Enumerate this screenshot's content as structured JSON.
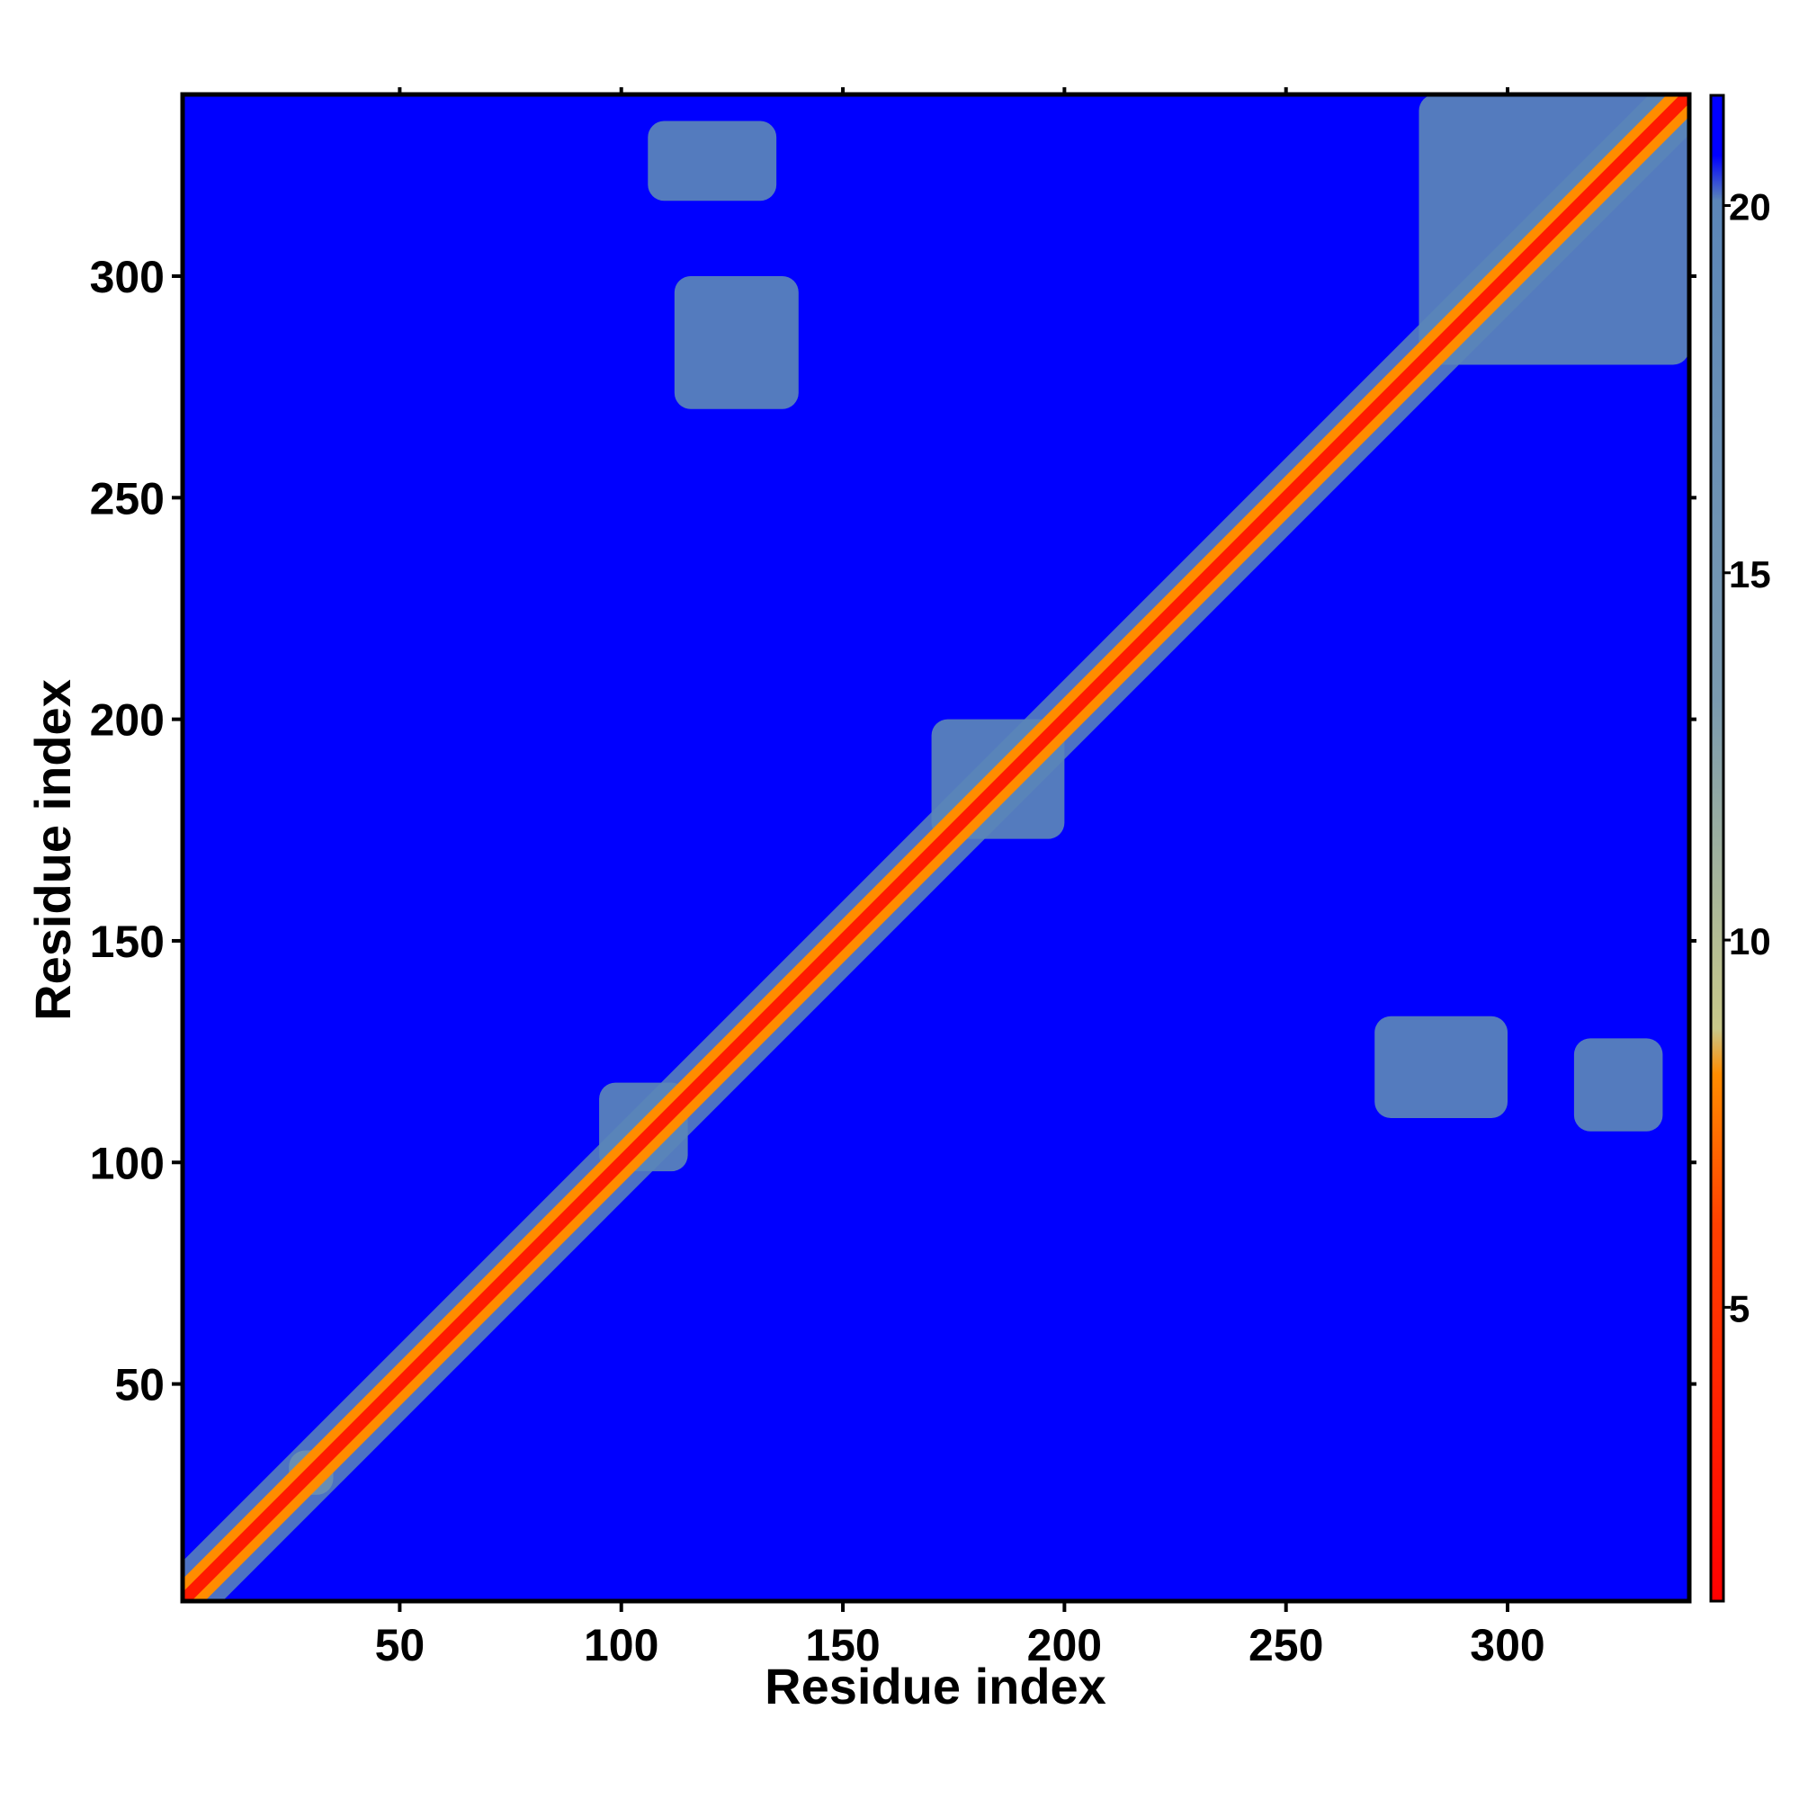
{
  "chart_data": {
    "type": "heatmap",
    "title": "",
    "xlabel": "Residue index",
    "ylabel": "Residue index",
    "xlim": [
      1,
      341
    ],
    "ylim": [
      1,
      341
    ],
    "x_ticks": [
      50,
      100,
      150,
      200,
      250,
      300
    ],
    "y_ticks": [
      50,
      100,
      150,
      200,
      250,
      300
    ],
    "colorbar": {
      "ticks": [
        5,
        10,
        15,
        20
      ],
      "range": [
        1,
        21.5
      ],
      "colors": [
        "#ff0000",
        "#ff8c00",
        "#c8c88a",
        "#5b86b8",
        "#0000ff"
      ]
    },
    "background_value": 21,
    "diagonal_band": {
      "core_value": 2,
      "inner_width": 2,
      "mid_value": 8,
      "mid_width": 5,
      "outer_value": 12,
      "outer_width": 9
    },
    "contact_regions": [
      {
        "x": [
          112,
          140
        ],
        "y": [
          270,
          300
        ],
        "value": 18
      },
      {
        "x": [
          106,
          135
        ],
        "y": [
          317,
          335
        ],
        "value": 18
      },
      {
        "x": [
          270,
          300
        ],
        "y": [
          110,
          133
        ],
        "value": 18
      },
      {
        "x": [
          315,
          335
        ],
        "y": [
          107,
          128
        ],
        "value": 18
      },
      {
        "x": [
          280,
          341
        ],
        "y": [
          280,
          341
        ],
        "value": 16
      },
      {
        "x": [
          170,
          200
        ],
        "y": [
          173,
          200
        ],
        "value": 12
      },
      {
        "x": [
          95,
          115
        ],
        "y": [
          98,
          118
        ],
        "value": 11
      },
      {
        "x": [
          25,
          35
        ],
        "y": [
          25,
          35
        ],
        "value": 10
      }
    ]
  }
}
